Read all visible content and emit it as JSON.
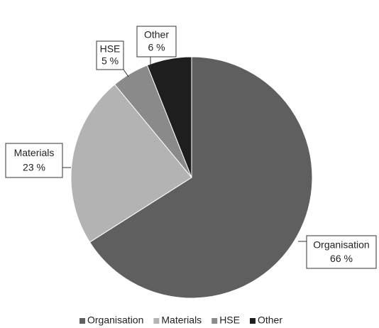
{
  "chart_data": {
    "type": "pie",
    "categories": [
      "Organisation",
      "Materials",
      "HSE",
      "Other"
    ],
    "values": [
      66,
      23,
      5,
      6
    ],
    "value_labels": [
      "66 %",
      "23 %",
      "5 %",
      "6 %"
    ],
    "colors": [
      "#5f5f5f",
      "#b3b3b3",
      "#8a8a8a",
      "#1e1e1e"
    ],
    "legend": "bottom"
  }
}
